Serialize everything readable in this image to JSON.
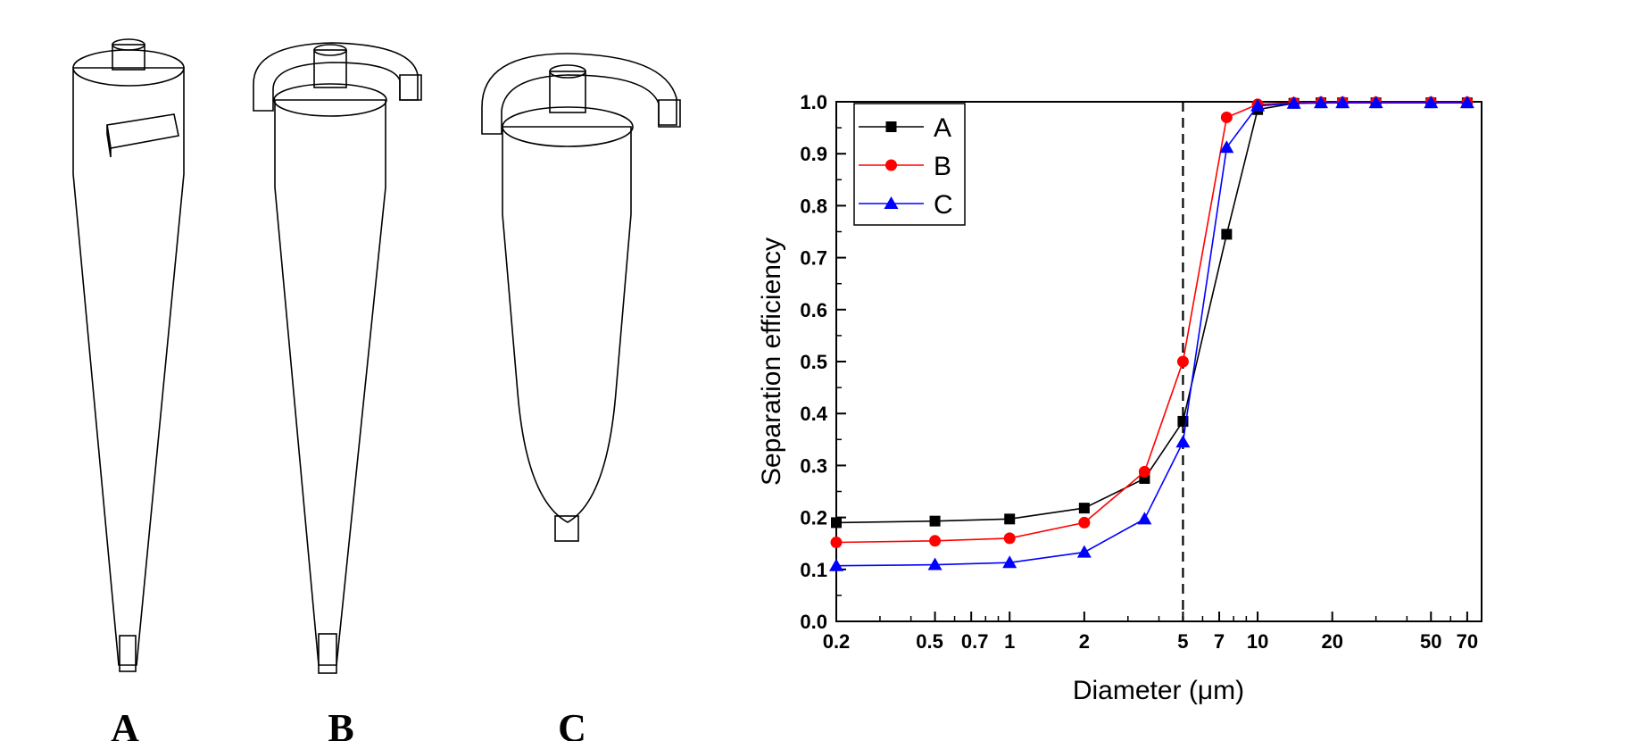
{
  "panel_labels": [
    "A",
    "B",
    "C"
  ],
  "chart_data": {
    "type": "line",
    "xlabel": "Diameter (μm)",
    "ylabel": "Separation efficiency",
    "xscale": "log",
    "xlim": [
      0.2,
      80
    ],
    "ylim": [
      0.0,
      1.0
    ],
    "x_ticks": [
      {
        "value": 0.2,
        "label": "0.2"
      },
      {
        "value": 0.5,
        "label": "0.5"
      },
      {
        "value": 0.7,
        "label": "0.7"
      },
      {
        "value": 1,
        "label": "1"
      },
      {
        "value": 2,
        "label": "2"
      },
      {
        "value": 5,
        "label": "5"
      },
      {
        "value": 7,
        "label": "7"
      },
      {
        "value": 10,
        "label": "10"
      },
      {
        "value": 20,
        "label": "20"
      },
      {
        "value": 50,
        "label": "50"
      },
      {
        "value": 70,
        "label": "70"
      }
    ],
    "y_ticks": [
      "0.0",
      "0.1",
      "0.2",
      "0.3",
      "0.4",
      "0.5",
      "0.6",
      "0.7",
      "0.8",
      "0.9",
      "1.0"
    ],
    "reference_line": {
      "x": 5,
      "style": "dashed"
    },
    "legend_position": "top-left",
    "grid": false,
    "series": [
      {
        "name": "A",
        "color": "#000000",
        "marker": "square",
        "x": [
          0.2,
          0.5,
          1,
          2,
          3.5,
          5,
          7.5,
          10,
          14,
          18,
          22,
          30,
          50,
          70
        ],
        "y": [
          0.19,
          0.193,
          0.197,
          0.218,
          0.275,
          0.385,
          0.745,
          0.985,
          0.997,
          0.998,
          0.998,
          0.998,
          0.998,
          0.998
        ]
      },
      {
        "name": "B",
        "color": "#ff0000",
        "marker": "circle",
        "x": [
          0.2,
          0.5,
          1,
          2,
          3.5,
          5,
          7.5,
          10,
          14,
          18,
          22,
          30,
          50,
          70
        ],
        "y": [
          0.152,
          0.155,
          0.16,
          0.19,
          0.288,
          0.5,
          0.97,
          0.995,
          0.998,
          0.999,
          0.999,
          0.999,
          0.999,
          0.999
        ]
      },
      {
        "name": "C",
        "color": "#0000ff",
        "marker": "triangle",
        "x": [
          0.2,
          0.5,
          1,
          2,
          3.5,
          5,
          7.5,
          10,
          14,
          18,
          22,
          30,
          50,
          70
        ],
        "y": [
          0.107,
          0.109,
          0.113,
          0.133,
          0.197,
          0.345,
          0.912,
          0.992,
          0.997,
          0.998,
          0.998,
          0.998,
          0.998,
          0.998
        ]
      }
    ]
  }
}
